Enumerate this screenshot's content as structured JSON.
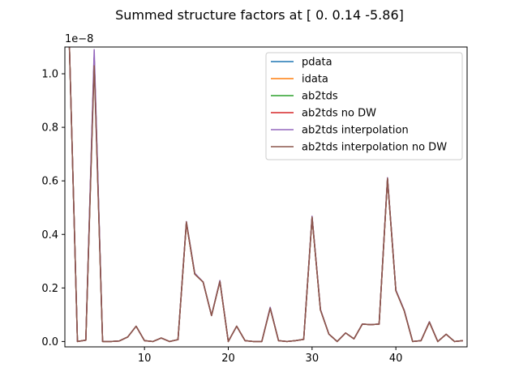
{
  "chart_data": {
    "type": "line",
    "title": "Summed structure factors at [ 0.    0.14 -5.86]",
    "xlabel": "",
    "ylabel": "",
    "y_scale_label": "1e−8",
    "xlim": [
      0.5,
      48.5
    ],
    "ylim": [
      -0.02,
      1.1
    ],
    "x_ticks": [
      10,
      20,
      30,
      40
    ],
    "y_ticks": [
      0.0,
      0.2,
      0.4,
      0.6,
      0.8,
      1.0
    ],
    "x_tick_labels": [
      "10",
      "20",
      "30",
      "40"
    ],
    "y_tick_labels": [
      "0.0",
      "0.2",
      "0.4",
      "0.6",
      "0.8",
      "1.0"
    ],
    "grid": false,
    "legend_position": "top-right",
    "x": [
      1,
      2,
      3,
      4,
      5,
      6,
      7,
      8,
      9,
      10,
      11,
      12,
      13,
      14,
      15,
      16,
      17,
      18,
      19,
      20,
      21,
      22,
      23,
      24,
      25,
      26,
      27,
      28,
      29,
      30,
      31,
      32,
      33,
      34,
      35,
      36,
      37,
      38,
      39,
      40,
      41,
      42,
      43,
      44,
      45,
      46,
      47,
      48
    ],
    "series": [
      {
        "name": "pdata",
        "color": "#1f77b4",
        "values": [
          1.15,
          0.0,
          0.005,
          1.06,
          0.0,
          0.0,
          0.002,
          0.017,
          0.057,
          0.003,
          0.0,
          0.013,
          0.0,
          0.007,
          0.443,
          0.252,
          0.222,
          0.097,
          0.225,
          0.0,
          0.057,
          0.003,
          0.0,
          0.0,
          0.125,
          0.003,
          0.0,
          0.003,
          0.008,
          0.463,
          0.118,
          0.028,
          0.0,
          0.032,
          0.01,
          0.065,
          0.063,
          0.065,
          0.607,
          0.19,
          0.115,
          0.0,
          0.003,
          0.072,
          0.0,
          0.027,
          0.0,
          0.003
        ]
      },
      {
        "name": "idata",
        "color": "#ff7f0e",
        "values": [
          1.15,
          0.0,
          0.005,
          1.06,
          0.0,
          0.0,
          0.002,
          0.017,
          0.057,
          0.003,
          0.0,
          0.013,
          0.0,
          0.007,
          0.443,
          0.252,
          0.222,
          0.097,
          0.225,
          0.0,
          0.057,
          0.003,
          0.0,
          0.0,
          0.125,
          0.003,
          0.0,
          0.003,
          0.008,
          0.463,
          0.118,
          0.028,
          0.0,
          0.032,
          0.01,
          0.065,
          0.063,
          0.065,
          0.607,
          0.19,
          0.115,
          0.0,
          0.003,
          0.072,
          0.0,
          0.027,
          0.0,
          0.003
        ]
      },
      {
        "name": "ab2tds",
        "color": "#2ca02c",
        "values": [
          1.15,
          0.0,
          0.005,
          1.06,
          0.0,
          0.0,
          0.002,
          0.017,
          0.057,
          0.003,
          0.0,
          0.013,
          0.0,
          0.007,
          0.443,
          0.252,
          0.222,
          0.097,
          0.225,
          0.0,
          0.057,
          0.003,
          0.0,
          0.0,
          0.125,
          0.003,
          0.0,
          0.003,
          0.008,
          0.463,
          0.118,
          0.028,
          0.0,
          0.032,
          0.01,
          0.065,
          0.063,
          0.065,
          0.607,
          0.19,
          0.115,
          0.0,
          0.003,
          0.072,
          0.0,
          0.027,
          0.0,
          0.003
        ]
      },
      {
        "name": "ab2tds no DW",
        "color": "#d62728",
        "values": [
          1.15,
          0.0,
          0.005,
          1.06,
          0.0,
          0.0,
          0.002,
          0.017,
          0.057,
          0.003,
          0.0,
          0.013,
          0.0,
          0.007,
          0.443,
          0.252,
          0.222,
          0.097,
          0.225,
          0.0,
          0.057,
          0.003,
          0.0,
          0.0,
          0.125,
          0.003,
          0.0,
          0.003,
          0.008,
          0.463,
          0.118,
          0.028,
          0.0,
          0.032,
          0.01,
          0.065,
          0.063,
          0.065,
          0.607,
          0.19,
          0.115,
          0.0,
          0.003,
          0.072,
          0.0,
          0.027,
          0.0,
          0.003
        ]
      },
      {
        "name": "ab2tds interpolation",
        "color": "#9467bd",
        "values": [
          1.15,
          0.0,
          0.005,
          1.09,
          0.0,
          0.0,
          0.002,
          0.017,
          0.057,
          0.003,
          0.0,
          0.013,
          0.0,
          0.007,
          0.448,
          0.255,
          0.222,
          0.097,
          0.228,
          0.0,
          0.057,
          0.003,
          0.0,
          0.0,
          0.128,
          0.003,
          0.0,
          0.003,
          0.008,
          0.468,
          0.12,
          0.028,
          0.0,
          0.032,
          0.01,
          0.065,
          0.063,
          0.065,
          0.612,
          0.192,
          0.117,
          0.0,
          0.003,
          0.074,
          0.0,
          0.027,
          0.0,
          0.003
        ]
      },
      {
        "name": "ab2tds interpolation no DW",
        "color": "#8c564b",
        "values": [
          1.15,
          0.0,
          0.005,
          1.03,
          0.0,
          0.0,
          0.002,
          0.017,
          0.057,
          0.003,
          0.0,
          0.013,
          0.0,
          0.007,
          0.447,
          0.252,
          0.222,
          0.097,
          0.225,
          0.0,
          0.057,
          0.003,
          0.0,
          0.0,
          0.125,
          0.003,
          0.0,
          0.003,
          0.008,
          0.465,
          0.118,
          0.028,
          0.0,
          0.032,
          0.01,
          0.065,
          0.063,
          0.065,
          0.61,
          0.19,
          0.115,
          0.0,
          0.003,
          0.073,
          0.0,
          0.027,
          0.0,
          0.003
        ]
      }
    ]
  }
}
